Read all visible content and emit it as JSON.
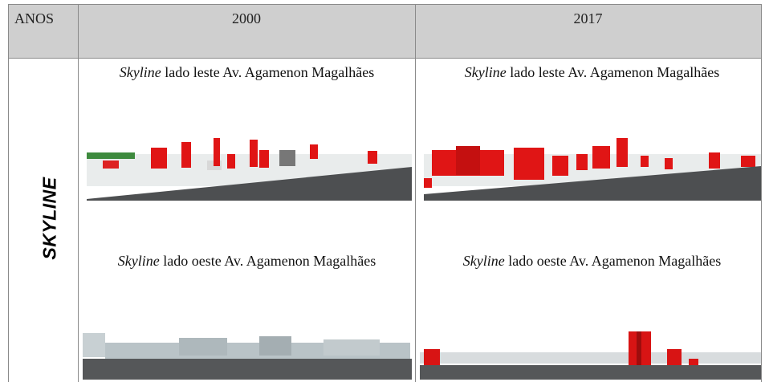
{
  "table": {
    "header": [
      "ANOS",
      "2000",
      "2017"
    ],
    "row_label": "SKYLINE",
    "cells": [
      [
        {
          "emphasis": "Skyline",
          "text": "lado leste Av. Agamenon Magalhães"
        },
        {
          "emphasis": "Skyline",
          "text": "lado oeste Av. Agamenon Magalhães"
        }
      ],
      [
        {
          "emphasis": "Skyline",
          "text": "lado leste Av. Agamenon Magalhães"
        },
        {
          "emphasis": "Skyline",
          "text": "lado oeste Av. Agamenon Magalhães"
        }
      ]
    ]
  }
}
